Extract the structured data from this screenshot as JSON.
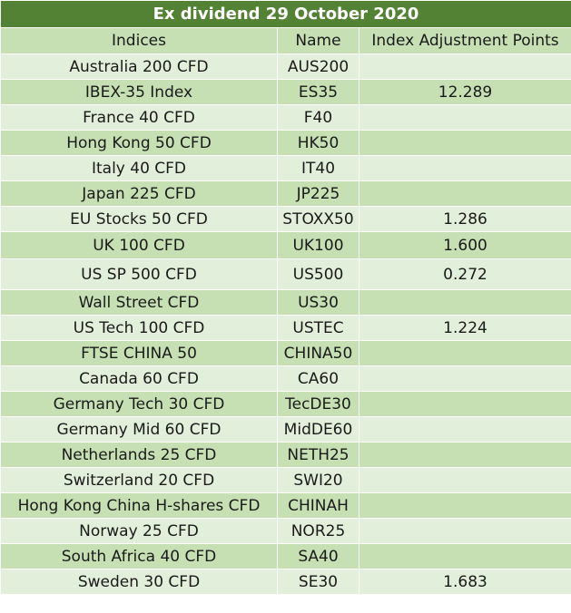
{
  "table": {
    "title": "Ex dividend 29 October 2020",
    "headers": [
      "Indices",
      "Name",
      "Index Adjustment Points"
    ],
    "rows": [
      {
        "index": "Australia 200 CFD",
        "name": "AUS200",
        "points": ""
      },
      {
        "index": "IBEX-35 Index",
        "name": "ES35",
        "points": "12.289"
      },
      {
        "index": "France 40 CFD",
        "name": "F40",
        "points": ""
      },
      {
        "index": "Hong Kong 50 CFD",
        "name": "HK50",
        "points": ""
      },
      {
        "index": "Italy 40 CFD",
        "name": "IT40",
        "points": ""
      },
      {
        "index": "Japan 225 CFD",
        "name": "JP225",
        "points": ""
      },
      {
        "index": "EU Stocks 50 CFD",
        "name": "STOXX50",
        "points": "1.286"
      },
      {
        "index": "UK 100 CFD",
        "name": "UK100",
        "points": "1.600"
      },
      {
        "index": "US SP 500 CFD",
        "name": "US500",
        "points": "0.272"
      },
      {
        "index": "Wall Street CFD",
        "name": "US30",
        "points": ""
      },
      {
        "index": "US Tech 100 CFD",
        "name": "USTEC",
        "points": "1.224"
      },
      {
        "index": "FTSE CHINA 50",
        "name": "CHINA50",
        "points": ""
      },
      {
        "index": "Canada 60 CFD",
        "name": "CA60",
        "points": ""
      },
      {
        "index": "Germany Tech 30 CFD",
        "name": "TecDE30",
        "points": ""
      },
      {
        "index": "Germany Mid 60 CFD",
        "name": "MidDE60",
        "points": ""
      },
      {
        "index": "Netherlands 25 CFD",
        "name": "NETH25",
        "points": ""
      },
      {
        "index": "Switzerland 20 CFD",
        "name": "SWI20",
        "points": ""
      },
      {
        "index": "Hong Kong China H-shares CFD",
        "name": "CHINAH",
        "points": ""
      },
      {
        "index": "Norway 25 CFD",
        "name": "NOR25",
        "points": ""
      },
      {
        "index": "South Africa 40 CFD",
        "name": "SA40",
        "points": ""
      },
      {
        "index": "Sweden 30 CFD",
        "name": "SE30",
        "points": "1.683"
      }
    ]
  },
  "colors": {
    "title_bg": "#548235",
    "row_dark": "#c6e0b4",
    "row_light": "#e2efda"
  }
}
